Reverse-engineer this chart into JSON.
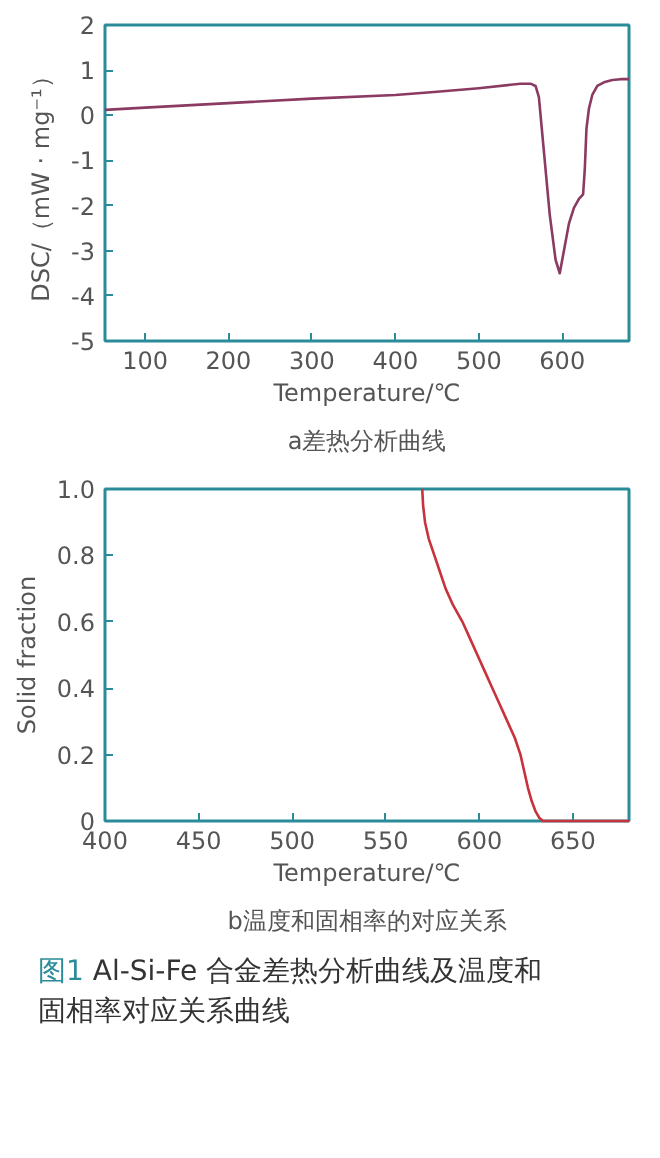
{
  "chart_data": [
    {
      "type": "line",
      "title": "a差热分析曲线",
      "xlabel": "Temperature/℃",
      "ylabel": "DSC/（mW · mg⁻¹）",
      "xlim": [
        52,
        680
      ],
      "ylim": [
        -5,
        2
      ],
      "xticks": [
        100,
        200,
        300,
        400,
        500,
        600
      ],
      "yticks": [
        -5,
        -4,
        -3,
        -2,
        -1,
        0,
        1,
        2
      ],
      "grid": false,
      "series": [
        {
          "color": "#8b3a62",
          "x": [
            52,
            100,
            200,
            300,
            400,
            450,
            500,
            550,
            562,
            568,
            572,
            578,
            585,
            592,
            597,
            602,
            608,
            614,
            620,
            625,
            627,
            629,
            632,
            636,
            642,
            650,
            660,
            670,
            680
          ],
          "values": [
            0.12,
            0.17,
            0.27,
            0.37,
            0.45,
            0.52,
            0.6,
            0.7,
            0.7,
            0.65,
            0.4,
            -0.8,
            -2.2,
            -3.2,
            -3.5,
            -3.0,
            -2.4,
            -2.05,
            -1.85,
            -1.75,
            -1.2,
            -0.3,
            0.15,
            0.45,
            0.65,
            0.73,
            0.78,
            0.8,
            0.8
          ]
        }
      ]
    },
    {
      "type": "line",
      "title": "b温度和固相率的对应关系",
      "xlabel": "Temperature/℃",
      "ylabel": "Solid fraction",
      "xlim": [
        400,
        680
      ],
      "ylim": [
        0,
        1.0
      ],
      "xticks": [
        400,
        450,
        500,
        550,
        600,
        650
      ],
      "yticks": [
        0,
        0.2,
        0.4,
        0.6,
        {
          "value": 0.8,
          "label": "0.8"
        },
        {
          "value": 1.0,
          "label": "1.0"
        }
      ],
      "grid": false,
      "annotations": [
        "图1 Al-Si-Fe 合金差热分析曲线及温度和固相率对应关系曲线"
      ],
      "series": [
        {
          "color": "#c8323c",
          "x": [
            569.5,
            570,
            571,
            573,
            576,
            579,
            582,
            586,
            591,
            595,
            599,
            603,
            607,
            611,
            615,
            619,
            622,
            624,
            626,
            628,
            630,
            632,
            634,
            640,
            660,
            680
          ],
          "values": [
            1.0,
            0.95,
            0.9,
            0.85,
            0.8,
            0.75,
            0.7,
            0.65,
            0.6,
            0.55,
            0.5,
            0.45,
            0.4,
            0.35,
            0.3,
            0.25,
            0.2,
            0.15,
            0.1,
            0.06,
            0.03,
            0.01,
            0,
            0,
            0,
            0
          ]
        }
      ]
    }
  ]
}
